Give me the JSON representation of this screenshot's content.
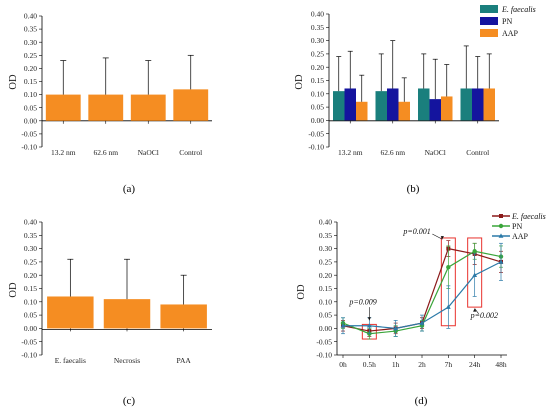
{
  "panels": [
    {
      "label": "(a)"
    },
    {
      "label": "(b)"
    },
    {
      "label": "(c)"
    },
    {
      "label": "(d)"
    }
  ],
  "colors": {
    "orange": "#f58d22",
    "teal": "#1a7f7d",
    "navy": "#14149e",
    "dark_red": "#8b1a1a",
    "green": "#3aa53a",
    "steel_blue": "#2b7aa8",
    "annot_red": "#e8322d"
  },
  "chart_data": [
    {
      "id": "a",
      "type": "bar",
      "ylabel": "OD",
      "ylim": [
        -0.1,
        0.4
      ],
      "yticks": [
        "-0.10",
        "-0.05",
        "0.00",
        "0.05",
        "0.10",
        "0.15",
        "0.20",
        "0.25",
        "0.30",
        "0.35",
        "0.40"
      ],
      "categories": [
        "13.2 nm",
        "62.6 nm",
        "NaOCl",
        "Control"
      ],
      "values": [
        0.1,
        0.1,
        0.1,
        0.12
      ],
      "errors": [
        0.13,
        0.14,
        0.13,
        0.13
      ],
      "color": "orange"
    },
    {
      "id": "b",
      "type": "bar",
      "ylabel": "OD",
      "ylim": [
        -0.1,
        0.4
      ],
      "yticks": [
        "-0.10",
        "-0.05",
        "0.00",
        "0.05",
        "0.10",
        "0.15",
        "0.20",
        "0.25",
        "0.30",
        "0.35",
        "0.40"
      ],
      "categories": [
        "13.2 nm",
        "62.6 nm",
        "NaOCl",
        "Control"
      ],
      "series": [
        {
          "name": "E. faecalis",
          "italic": true,
          "color": "teal",
          "values": [
            0.11,
            0.11,
            0.12,
            0.12
          ],
          "errors": [
            0.13,
            0.14,
            0.13,
            0.16
          ]
        },
        {
          "name": "PN",
          "color": "navy",
          "values": [
            0.12,
            0.12,
            0.08,
            0.12
          ],
          "errors": [
            0.14,
            0.18,
            0.15,
            0.12
          ]
        },
        {
          "name": "AAP",
          "color": "orange",
          "values": [
            0.07,
            0.07,
            0.09,
            0.12
          ],
          "errors": [
            0.1,
            0.09,
            0.12,
            0.13
          ]
        }
      ],
      "legend": "top-right"
    },
    {
      "id": "c",
      "type": "bar",
      "ylabel": "OD",
      "ylim": [
        -0.1,
        0.4
      ],
      "yticks": [
        "-0.10",
        "-0.05",
        "0.00",
        "0.05",
        "0.10",
        "0.15",
        "0.20",
        "0.25",
        "0.30",
        "0.35",
        "0.40"
      ],
      "categories": [
        "E. faecalis",
        "Necrosis",
        "PAA"
      ],
      "values": [
        0.12,
        0.11,
        0.09
      ],
      "errors": [
        0.14,
        0.15,
        0.11
      ],
      "color": "orange"
    },
    {
      "id": "d",
      "type": "line",
      "ylabel": "OD",
      "ylim": [
        -0.1,
        0.4
      ],
      "yticks": [
        "-0.10",
        "-0.05",
        "0.00",
        "0.05",
        "0.10",
        "0.15",
        "0.20",
        "0.25",
        "0.30",
        "0.35",
        "0.40"
      ],
      "categories": [
        "0h",
        "0.5h",
        "1h",
        "2h",
        "7h",
        "24h",
        "48h"
      ],
      "series": [
        {
          "name": "E. faecalis",
          "italic": true,
          "color": "dark_red",
          "marker": "square",
          "values": [
            0.01,
            -0.01,
            0.0,
            0.02,
            0.3,
            0.28,
            0.25
          ],
          "errors": [
            0.02,
            0.02,
            0.02,
            0.02,
            0.03,
            0.04,
            0.04
          ]
        },
        {
          "name": "PN",
          "color": "green",
          "marker": "circle",
          "values": [
            0.02,
            -0.02,
            -0.01,
            0.01,
            0.23,
            0.29,
            0.27
          ],
          "errors": [
            0.02,
            0.02,
            0.02,
            0.02,
            0.08,
            0.03,
            0.04
          ]
        },
        {
          "name": "AAP",
          "color": "steel_blue",
          "marker": "triangle",
          "values": [
            0.01,
            0.01,
            0.0,
            0.02,
            0.08,
            0.2,
            0.25
          ],
          "errors": [
            0.03,
            0.03,
            0.03,
            0.03,
            0.08,
            0.08,
            0.07
          ]
        }
      ],
      "legend": "top-right",
      "annotations": [
        {
          "text": "p=0.009",
          "category": "0.5h"
        },
        {
          "text": "p=0.001",
          "category": "7h"
        },
        {
          "text": "p=0.002",
          "category": "24h"
        }
      ]
    }
  ]
}
